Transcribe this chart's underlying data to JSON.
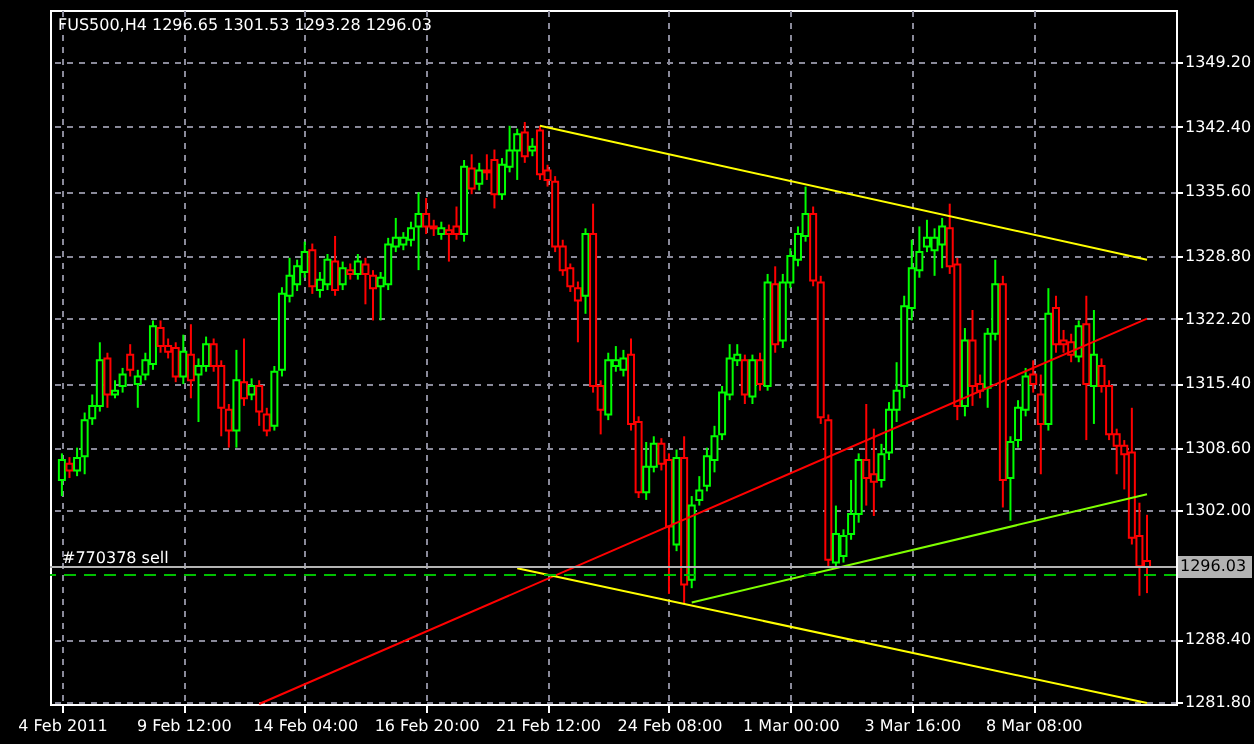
{
  "chart_data": {
    "type": "candlestick",
    "title": "FUS500,H4  1296.65 1301.53 1293.28 1296.03",
    "categories": [
      "4 Feb 2011",
      null,
      null,
      null,
      null,
      null,
      null,
      null,
      null,
      null,
      null,
      null,
      null,
      null,
      null,
      null,
      "9 Feb 12:00",
      null,
      null,
      null,
      null,
      null,
      null,
      null,
      null,
      null,
      null,
      null,
      null,
      null,
      null,
      null,
      "14 Feb 04:00",
      null,
      null,
      null,
      null,
      null,
      null,
      null,
      null,
      null,
      null,
      null,
      null,
      null,
      null,
      null,
      "16 Feb 20:00",
      null,
      null,
      null,
      null,
      null,
      null,
      null,
      null,
      null,
      null,
      null,
      null,
      null,
      null,
      null,
      "21 Feb 12:00",
      null,
      null,
      null,
      null,
      null,
      null,
      null,
      null,
      null,
      null,
      null,
      null,
      null,
      null,
      null,
      "24 Feb 08:00",
      null,
      null,
      null,
      null,
      null,
      null,
      null,
      null,
      null,
      null,
      null,
      null,
      null,
      null,
      null,
      "1 Mar 00:00",
      null,
      null,
      null,
      null,
      null,
      null,
      null,
      null,
      null,
      null,
      null,
      null,
      null,
      null,
      null,
      "3 Mar 16:00",
      null,
      null,
      null,
      null,
      null,
      null,
      null,
      null,
      null,
      null,
      null,
      null,
      null,
      null,
      null,
      "8 Mar 08:00",
      null,
      null,
      null,
      null,
      null,
      null,
      null,
      null,
      null,
      null,
      null,
      null,
      null,
      null,
      null
    ],
    "ohlc": [
      [
        1305.2,
        1308.0,
        1303.5,
        1307.3
      ],
      [
        1306.9,
        1307.6,
        1305.4,
        1306.2
      ],
      [
        1306.2,
        1308.6,
        1305.6,
        1307.5
      ],
      [
        1307.7,
        1312.3,
        1305.8,
        1311.5
      ],
      [
        1311.7,
        1314.2,
        1311.0,
        1313.0
      ],
      [
        1313.0,
        1319.7,
        1312.4,
        1317.8
      ],
      [
        1318.0,
        1318.6,
        1312.8,
        1314.2
      ],
      [
        1314.2,
        1315.7,
        1313.8,
        1314.6
      ],
      [
        1315.1,
        1317.0,
        1314.4,
        1316.3
      ],
      [
        1318.4,
        1319.5,
        1316.1,
        1316.8
      ],
      [
        1315.3,
        1316.8,
        1312.8,
        1316.1
      ],
      [
        1316.3,
        1318.6,
        1315.7,
        1317.8
      ],
      [
        1317.4,
        1322.0,
        1316.8,
        1321.4
      ],
      [
        1321.2,
        1322.0,
        1318.6,
        1319.3
      ],
      [
        1319.3,
        1320.1,
        1318.0,
        1318.7
      ],
      [
        1319.1,
        1319.7,
        1315.5,
        1316.1
      ],
      [
        1316.1,
        1320.5,
        1315.3,
        1318.7
      ],
      [
        1318.4,
        1321.6,
        1313.8,
        1315.7
      ],
      [
        1316.3,
        1318.0,
        1311.3,
        1317.2
      ],
      [
        1317.2,
        1320.3,
        1316.6,
        1319.5
      ],
      [
        1319.5,
        1320.1,
        1316.6,
        1317.2
      ],
      [
        1317.2,
        1317.8,
        1309.8,
        1312.8
      ],
      [
        1312.6,
        1313.2,
        1308.6,
        1310.4
      ],
      [
        1310.4,
        1318.9,
        1308.6,
        1315.7
      ],
      [
        1315.5,
        1320.1,
        1313.0,
        1313.8
      ],
      [
        1314.2,
        1315.9,
        1313.6,
        1315.1
      ],
      [
        1315.1,
        1315.7,
        1310.9,
        1312.4
      ],
      [
        1312.1,
        1312.8,
        1309.8,
        1310.4
      ],
      [
        1310.9,
        1317.2,
        1310.4,
        1316.6
      ],
      [
        1316.8,
        1325.5,
        1316.1,
        1324.8
      ],
      [
        1324.6,
        1328.6,
        1323.9,
        1326.7
      ],
      [
        1325.8,
        1328.4,
        1325.1,
        1327.7
      ],
      [
        1327.1,
        1330.3,
        1326.5,
        1329.2
      ],
      [
        1329.4,
        1330.1,
        1324.8,
        1325.6
      ],
      [
        1325.2,
        1327.1,
        1324.4,
        1326.3
      ],
      [
        1325.8,
        1329.0,
        1325.2,
        1328.4
      ],
      [
        1328.2,
        1330.9,
        1324.6,
        1325.2
      ],
      [
        1325.8,
        1328.2,
        1325.2,
        1327.5
      ],
      [
        1327.3,
        1328.0,
        1326.3,
        1326.9
      ],
      [
        1326.9,
        1329.0,
        1326.3,
        1328.2
      ],
      [
        1327.9,
        1328.6,
        1323.7,
        1326.9
      ],
      [
        1326.7,
        1327.3,
        1322.0,
        1325.4
      ],
      [
        1325.6,
        1327.1,
        1322.0,
        1326.5
      ],
      [
        1325.8,
        1330.7,
        1325.2,
        1330.0
      ],
      [
        1329.8,
        1332.8,
        1329.2,
        1330.7
      ],
      [
        1330.0,
        1331.3,
        1329.4,
        1330.7
      ],
      [
        1330.5,
        1332.4,
        1329.8,
        1331.7
      ],
      [
        1331.9,
        1335.5,
        1327.3,
        1333.2
      ],
      [
        1333.2,
        1334.9,
        1331.1,
        1331.9
      ],
      [
        1331.9,
        1332.6,
        1330.9,
        1331.7
      ],
      [
        1331.1,
        1332.4,
        1330.5,
        1331.7
      ],
      [
        1331.5,
        1332.1,
        1328.2,
        1331.1
      ],
      [
        1331.9,
        1334.0,
        1330.5,
        1331.1
      ],
      [
        1331.1,
        1338.9,
        1330.3,
        1338.2
      ],
      [
        1338.0,
        1339.5,
        1335.3,
        1335.9
      ],
      [
        1336.4,
        1338.6,
        1335.7,
        1337.8
      ],
      [
        1337.8,
        1339.5,
        1336.8,
        1337.6
      ],
      [
        1338.9,
        1340.0,
        1333.8,
        1335.3
      ],
      [
        1335.3,
        1339.1,
        1334.7,
        1338.4
      ],
      [
        1338.2,
        1342.5,
        1337.6,
        1339.9
      ],
      [
        1339.9,
        1342.2,
        1336.8,
        1341.6
      ],
      [
        1341.8,
        1342.9,
        1338.6,
        1339.3
      ],
      [
        1339.9,
        1341.2,
        1339.3,
        1340.3
      ],
      [
        1342.0,
        1342.5,
        1336.8,
        1337.4
      ],
      [
        1337.8,
        1338.4,
        1336.1,
        1336.8
      ],
      [
        1336.6,
        1337.2,
        1329.2,
        1329.8
      ],
      [
        1329.8,
        1330.5,
        1326.7,
        1327.3
      ],
      [
        1327.5,
        1328.0,
        1325.0,
        1325.6
      ],
      [
        1325.4,
        1326.1,
        1319.7,
        1324.1
      ],
      [
        1324.6,
        1331.7,
        1322.7,
        1331.1
      ],
      [
        1331.1,
        1334.3,
        1314.4,
        1315.1
      ],
      [
        1315.1,
        1315.7,
        1310.0,
        1312.6
      ],
      [
        1312.1,
        1318.6,
        1311.5,
        1317.8
      ],
      [
        1317.2,
        1319.3,
        1316.6,
        1317.8
      ],
      [
        1316.8,
        1318.9,
        1316.1,
        1318.0
      ],
      [
        1318.4,
        1320.1,
        1310.4,
        1311.1
      ],
      [
        1311.3,
        1311.9,
        1303.3,
        1303.9
      ],
      [
        1303.9,
        1309.2,
        1303.1,
        1306.6
      ],
      [
        1306.6,
        1309.8,
        1306.0,
        1309.0
      ],
      [
        1309.0,
        1309.6,
        1306.2,
        1306.9
      ],
      [
        1307.3,
        1308.0,
        1293.2,
        1300.3
      ],
      [
        1298.4,
        1308.4,
        1297.7,
        1307.5
      ],
      [
        1307.5,
        1309.8,
        1292.1,
        1294.2
      ],
      [
        1294.7,
        1303.5,
        1293.8,
        1302.5
      ],
      [
        1303.1,
        1305.6,
        1302.5,
        1304.1
      ],
      [
        1304.6,
        1308.6,
        1304.0,
        1307.7
      ],
      [
        1307.3,
        1310.9,
        1306.0,
        1309.8
      ],
      [
        1310.0,
        1315.1,
        1309.4,
        1314.4
      ],
      [
        1314.2,
        1319.5,
        1313.6,
        1318.0
      ],
      [
        1317.8,
        1319.5,
        1317.2,
        1318.4
      ],
      [
        1317.8,
        1318.4,
        1313.2,
        1314.2
      ],
      [
        1314.0,
        1318.4,
        1313.2,
        1317.8
      ],
      [
        1317.8,
        1318.6,
        1314.6,
        1315.3
      ],
      [
        1315.1,
        1326.9,
        1314.6,
        1326.0
      ],
      [
        1325.8,
        1327.7,
        1318.6,
        1319.5
      ],
      [
        1319.9,
        1326.9,
        1319.1,
        1326.0
      ],
      [
        1326.0,
        1329.6,
        1325.4,
        1328.8
      ],
      [
        1328.4,
        1331.9,
        1327.7,
        1331.1
      ],
      [
        1330.9,
        1336.1,
        1330.3,
        1333.2
      ],
      [
        1333.2,
        1334.0,
        1325.6,
        1326.2
      ],
      [
        1326.0,
        1326.7,
        1311.1,
        1311.8
      ],
      [
        1311.5,
        1312.1,
        1296.0,
        1296.8
      ],
      [
        1296.5,
        1302.5,
        1295.9,
        1299.5
      ],
      [
        1297.2,
        1300.0,
        1296.5,
        1299.3
      ],
      [
        1299.5,
        1305.2,
        1298.9,
        1301.6
      ],
      [
        1301.6,
        1308.0,
        1300.7,
        1307.3
      ],
      [
        1307.3,
        1313.2,
        1302.5,
        1305.4
      ],
      [
        1305.8,
        1310.6,
        1301.4,
        1305.0
      ],
      [
        1305.2,
        1309.0,
        1304.4,
        1307.9
      ],
      [
        1308.1,
        1313.4,
        1307.3,
        1312.6
      ],
      [
        1312.6,
        1317.6,
        1311.3,
        1314.6
      ],
      [
        1315.1,
        1324.6,
        1313.8,
        1323.5
      ],
      [
        1323.3,
        1330.5,
        1322.0,
        1327.5
      ],
      [
        1327.3,
        1331.9,
        1326.5,
        1329.2
      ],
      [
        1329.8,
        1332.6,
        1329.2,
        1330.7
      ],
      [
        1329.4,
        1331.7,
        1326.7,
        1330.7
      ],
      [
        1330.0,
        1332.8,
        1327.5,
        1331.9
      ],
      [
        1331.7,
        1334.3,
        1326.9,
        1327.7
      ],
      [
        1327.9,
        1328.6,
        1311.5,
        1313.0
      ],
      [
        1313.0,
        1321.2,
        1311.9,
        1319.9
      ],
      [
        1319.9,
        1323.1,
        1313.0,
        1315.1
      ],
      [
        1315.3,
        1316.3,
        1313.8,
        1314.6
      ],
      [
        1314.9,
        1321.2,
        1312.8,
        1320.6
      ],
      [
        1320.6,
        1328.4,
        1319.9,
        1325.8
      ],
      [
        1325.8,
        1326.7,
        1302.3,
        1305.2
      ],
      [
        1305.4,
        1309.8,
        1300.9,
        1309.2
      ],
      [
        1309.4,
        1313.6,
        1308.6,
        1312.8
      ],
      [
        1312.6,
        1317.0,
        1311.9,
        1316.1
      ],
      [
        1316.3,
        1317.8,
        1314.4,
        1315.3
      ],
      [
        1314.2,
        1316.3,
        1305.8,
        1311.1
      ],
      [
        1311.1,
        1325.4,
        1310.4,
        1322.7
      ],
      [
        1323.3,
        1324.6,
        1318.6,
        1319.5
      ],
      [
        1319.9,
        1321.0,
        1318.6,
        1319.5
      ],
      [
        1319.7,
        1320.6,
        1317.6,
        1318.4
      ],
      [
        1318.2,
        1322.0,
        1317.6,
        1321.4
      ],
      [
        1321.6,
        1324.6,
        1309.4,
        1315.3
      ],
      [
        1315.1,
        1323.1,
        1311.1,
        1318.4
      ],
      [
        1317.2,
        1318.0,
        1314.4,
        1315.1
      ],
      [
        1315.1,
        1315.7,
        1309.4,
        1310.0
      ],
      [
        1310.0,
        1310.6,
        1305.8,
        1308.8
      ],
      [
        1308.8,
        1309.4,
        1304.2,
        1307.9
      ],
      [
        1308.1,
        1312.8,
        1298.4,
        1299.1
      ],
      [
        1299.3,
        1302.8,
        1293.0,
        1296.1
      ],
      [
        1296.65,
        1301.53,
        1293.28,
        1296.03
      ]
    ],
    "series": [
      {
        "type": "line",
        "color": "#ff0000",
        "values": [
          null,
          null,
          null,
          null,
          null,
          null,
          null,
          null,
          null,
          null,
          null,
          null,
          null,
          null,
          null,
          null,
          null,
          null,
          null,
          null,
          null,
          null,
          null,
          null,
          null,
          null,
          1281.6,
          null,
          null,
          null,
          null,
          null,
          null,
          null,
          null,
          null,
          null,
          null,
          null,
          null,
          null,
          null,
          null,
          null,
          null,
          null,
          null,
          null,
          null,
          null,
          null,
          null,
          null,
          null,
          null,
          null,
          null,
          null,
          null,
          null,
          null,
          null,
          null,
          null,
          null,
          null,
          null,
          null,
          null,
          null,
          null,
          null,
          null,
          null,
          null,
          null,
          null,
          null,
          null,
          null,
          null,
          null,
          null,
          null,
          null,
          null,
          null,
          null,
          null,
          null,
          null,
          null,
          null,
          null,
          null,
          null,
          null,
          null,
          null,
          null,
          null,
          null,
          null,
          null,
          null,
          null,
          null,
          null,
          null,
          null,
          null,
          null,
          null,
          null,
          null,
          null,
          null,
          null,
          null,
          null,
          null,
          null,
          null,
          null,
          null,
          null,
          null,
          null,
          null,
          null,
          null,
          null,
          null,
          null,
          null,
          null,
          null,
          null,
          null,
          null,
          null,
          null,
          null,
          1322.2
        ]
      },
      {
        "type": "line",
        "color": "#ffff00",
        "values": [
          null,
          null,
          null,
          null,
          null,
          null,
          null,
          null,
          null,
          null,
          null,
          null,
          null,
          null,
          null,
          null,
          null,
          null,
          null,
          null,
          null,
          null,
          null,
          null,
          null,
          null,
          null,
          null,
          null,
          null,
          null,
          null,
          null,
          null,
          null,
          null,
          null,
          null,
          null,
          null,
          null,
          null,
          null,
          null,
          null,
          null,
          null,
          null,
          null,
          null,
          null,
          null,
          null,
          null,
          null,
          null,
          null,
          null,
          null,
          null,
          null,
          null,
          null,
          1342.5,
          null,
          null,
          null,
          null,
          null,
          null,
          null,
          null,
          null,
          null,
          null,
          null,
          null,
          null,
          null,
          null,
          null,
          null,
          null,
          null,
          null,
          null,
          null,
          null,
          null,
          null,
          null,
          null,
          null,
          null,
          null,
          null,
          null,
          null,
          null,
          null,
          null,
          null,
          null,
          null,
          null,
          null,
          null,
          null,
          null,
          null,
          null,
          null,
          null,
          null,
          null,
          null,
          null,
          null,
          null,
          null,
          null,
          null,
          null,
          null,
          null,
          null,
          null,
          null,
          null,
          null,
          null,
          null,
          null,
          null,
          null,
          null,
          null,
          null,
          null,
          null,
          null,
          null,
          null,
          1328.4
        ]
      },
      {
        "type": "line",
        "color": "#ffff00",
        "values": [
          null,
          null,
          null,
          null,
          null,
          null,
          null,
          null,
          null,
          null,
          null,
          null,
          null,
          null,
          null,
          null,
          null,
          null,
          null,
          null,
          null,
          null,
          null,
          null,
          null,
          null,
          null,
          null,
          null,
          null,
          null,
          null,
          null,
          null,
          null,
          null,
          null,
          null,
          null,
          null,
          null,
          null,
          null,
          null,
          null,
          null,
          null,
          null,
          null,
          null,
          null,
          null,
          null,
          null,
          null,
          null,
          null,
          null,
          null,
          null,
          1295.9,
          null,
          null,
          null,
          null,
          null,
          null,
          null,
          null,
          null,
          null,
          null,
          null,
          null,
          null,
          null,
          null,
          null,
          null,
          null,
          null,
          null,
          null,
          null,
          null,
          null,
          null,
          null,
          null,
          null,
          null,
          null,
          null,
          null,
          null,
          null,
          null,
          null,
          null,
          null,
          null,
          null,
          null,
          null,
          null,
          null,
          null,
          null,
          null,
          null,
          null,
          null,
          null,
          null,
          null,
          null,
          null,
          null,
          null,
          null,
          null,
          null,
          null,
          null,
          null,
          null,
          null,
          null,
          null,
          null,
          null,
          null,
          null,
          null,
          null,
          null,
          null,
          null,
          null,
          null,
          null,
          null,
          null,
          1281.7
        ]
      },
      {
        "type": "line",
        "color": "#7fff00",
        "values": [
          null,
          null,
          null,
          null,
          null,
          null,
          null,
          null,
          null,
          null,
          null,
          null,
          null,
          null,
          null,
          null,
          null,
          null,
          null,
          null,
          null,
          null,
          null,
          null,
          null,
          null,
          null,
          null,
          null,
          null,
          null,
          null,
          null,
          null,
          null,
          null,
          null,
          null,
          null,
          null,
          null,
          null,
          null,
          null,
          null,
          null,
          null,
          null,
          null,
          null,
          null,
          null,
          null,
          null,
          null,
          null,
          null,
          null,
          null,
          null,
          null,
          null,
          null,
          null,
          null,
          null,
          null,
          null,
          null,
          null,
          null,
          null,
          null,
          null,
          null,
          null,
          null,
          null,
          null,
          null,
          null,
          null,
          null,
          1292.3,
          null,
          null,
          null,
          null,
          null,
          null,
          null,
          null,
          null,
          null,
          null,
          null,
          null,
          null,
          null,
          null,
          null,
          null,
          null,
          null,
          null,
          null,
          null,
          null,
          null,
          null,
          null,
          null,
          null,
          null,
          null,
          null,
          null,
          null,
          null,
          null,
          null,
          null,
          null,
          null,
          null,
          null,
          null,
          null,
          null,
          null,
          null,
          null,
          null,
          null,
          null,
          null,
          null,
          null,
          null,
          null,
          null,
          null,
          null,
          1303.7
        ]
      }
    ],
    "ref_lines": [
      {
        "axis": "y",
        "value": 1296.03,
        "label": "1296.03",
        "color": "#b4b4b4"
      },
      {
        "axis": "y",
        "value": 1295.2,
        "label": "#770378 sell",
        "color": "#00c000",
        "line_style": "dashed"
      }
    ],
    "ylim": [
      1281.6,
      1354.7
    ],
    "yticks": [
      {
        "value": 1281.8,
        "label": "1281.80"
      },
      {
        "value": 1288.4,
        "label": "1288.40"
      },
      {
        "value": 1302.0,
        "label": "1302.00"
      },
      {
        "value": 1308.6,
        "label": "1308.60"
      },
      {
        "value": 1315.4,
        "label": "1315.40"
      },
      {
        "value": 1322.2,
        "label": "1322.20"
      },
      {
        "value": 1328.8,
        "label": "1328.80"
      },
      {
        "value": 1335.6,
        "label": "1335.60"
      },
      {
        "value": 1342.4,
        "label": "1342.40"
      },
      {
        "value": 1349.2,
        "label": "1349.20"
      }
    ],
    "grid": true
  }
}
